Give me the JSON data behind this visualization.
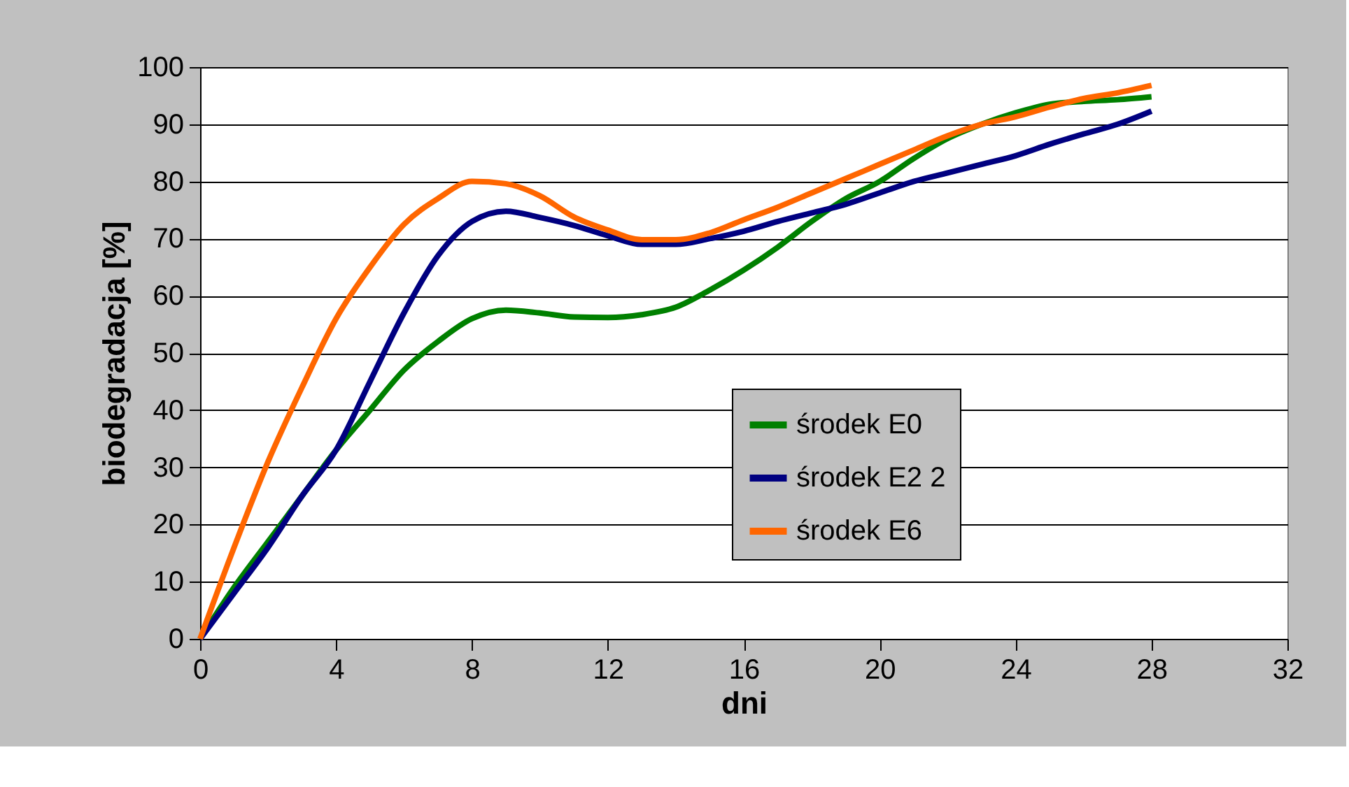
{
  "chart_data": {
    "type": "line",
    "xlabel": "dni",
    "ylabel": "biodegradacja [%]",
    "x": [
      0,
      1,
      2,
      3,
      4,
      5,
      6,
      7,
      8,
      9,
      10,
      11,
      12,
      13,
      14,
      15,
      16,
      17,
      18,
      19,
      20,
      21,
      22,
      23,
      24,
      25,
      26,
      27,
      28
    ],
    "series": [
      {
        "name": "środek E0",
        "color": "#008000",
        "values": [
          0,
          9,
          17,
          25,
          33,
          40,
          47,
          52,
          56,
          57.5,
          57,
          56.3,
          56.2,
          56.7,
          58,
          61,
          64.5,
          68.5,
          73,
          77,
          80,
          84,
          87.5,
          90,
          92,
          93.5,
          94,
          94.3,
          94.8
        ]
      },
      {
        "name": "środek E2 2",
        "color": "#000080",
        "values": [
          0,
          8,
          16,
          25,
          33,
          45,
          57,
          67,
          73,
          74.8,
          73.7,
          72.3,
          70.5,
          69,
          69,
          70,
          71.3,
          73,
          74.5,
          76,
          78,
          80,
          81.5,
          83,
          84.5,
          86.5,
          88.3,
          90,
          92.3
        ]
      },
      {
        "name": "środek E6",
        "color": "#ff6600",
        "values": [
          0,
          16,
          31,
          44,
          56,
          65,
          72.5,
          77,
          80,
          79.6,
          77.5,
          73.8,
          71.5,
          69.8,
          69.8,
          71,
          73.3,
          75.5,
          78,
          80.5,
          83,
          85.5,
          88,
          90,
          91.3,
          93,
          94.5,
          95.5,
          96.8
        ]
      }
    ],
    "xlim": [
      0,
      32
    ],
    "xticks": [
      0,
      4,
      8,
      12,
      16,
      20,
      24,
      28,
      32
    ],
    "ylim": [
      0,
      100
    ],
    "yticks": [
      0,
      10,
      20,
      30,
      40,
      50,
      60,
      70,
      80,
      90,
      100
    ],
    "grid": "y",
    "legend": "bottom right",
    "line_style": "solid",
    "marker": "none"
  }
}
